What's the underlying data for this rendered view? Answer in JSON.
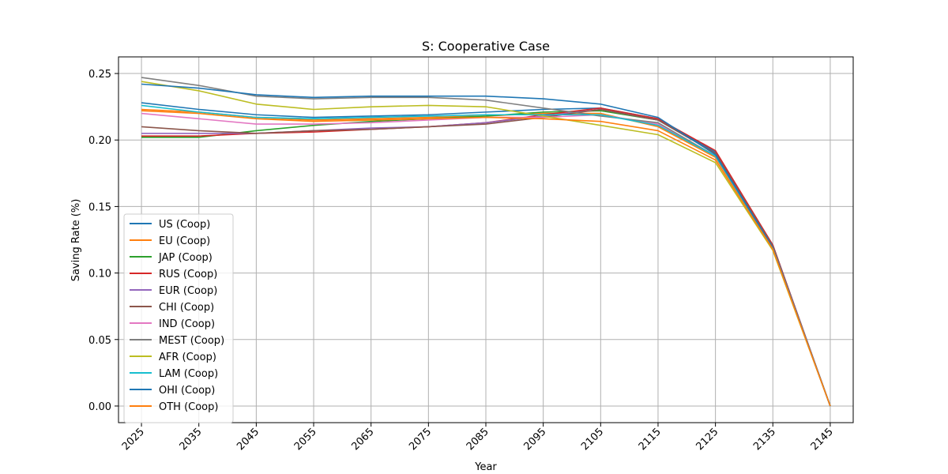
{
  "chart_data": {
    "type": "line",
    "title": "S: Cooperative Case",
    "xlabel": "Year",
    "ylabel": "Saving Rate (%)",
    "x": [
      2025,
      2035,
      2045,
      2055,
      2065,
      2075,
      2085,
      2095,
      2105,
      2115,
      2125,
      2135,
      2145
    ],
    "x_tick_labels": [
      "2025",
      "2035",
      "2045",
      "2055",
      "2065",
      "2075",
      "2085",
      "2095",
      "2105",
      "2115",
      "2125",
      "2135",
      "2145"
    ],
    "y_tick_labels": [
      "0.00",
      "0.05",
      "0.10",
      "0.15",
      "0.20",
      "0.25"
    ],
    "ylim": [
      -0.0125,
      0.2625
    ],
    "grid": true,
    "legend_position": "lower-left",
    "series": [
      {
        "name": "US (Coop)",
        "color": "#1f77b4",
        "values": [
          0.228,
          0.223,
          0.219,
          0.217,
          0.218,
          0.219,
          0.221,
          0.223,
          0.224,
          0.216,
          0.191,
          0.121,
          0.0
        ]
      },
      {
        "name": "EU (Coop)",
        "color": "#ff7f0e",
        "values": [
          0.223,
          0.221,
          0.217,
          0.215,
          0.216,
          0.217,
          0.218,
          0.22,
          0.22,
          0.21,
          0.187,
          0.119,
          0.0
        ]
      },
      {
        "name": "JAP (Coop)",
        "color": "#2ca02c",
        "values": [
          0.202,
          0.202,
          0.207,
          0.211,
          0.214,
          0.216,
          0.218,
          0.221,
          0.222,
          0.215,
          0.19,
          0.12,
          0.0
        ]
      },
      {
        "name": "RUS (Coop)",
        "color": "#d62728",
        "values": [
          0.203,
          0.203,
          0.205,
          0.206,
          0.208,
          0.21,
          0.213,
          0.219,
          0.224,
          0.216,
          0.192,
          0.121,
          0.0
        ]
      },
      {
        "name": "EUR (Coop)",
        "color": "#9467bd",
        "values": [
          0.205,
          0.205,
          0.205,
          0.207,
          0.209,
          0.21,
          0.213,
          0.218,
          0.223,
          0.215,
          0.19,
          0.12,
          0.0
        ]
      },
      {
        "name": "CHI (Coop)",
        "color": "#8c564b",
        "values": [
          0.21,
          0.207,
          0.205,
          0.207,
          0.208,
          0.21,
          0.212,
          0.217,
          0.223,
          0.215,
          0.19,
          0.12,
          0.0
        ]
      },
      {
        "name": "IND (Coop)",
        "color": "#e377c2",
        "values": [
          0.22,
          0.216,
          0.212,
          0.212,
          0.213,
          0.215,
          0.217,
          0.217,
          0.219,
          0.212,
          0.188,
          0.119,
          0.0
        ]
      },
      {
        "name": "MEST (Coop)",
        "color": "#7f7f7f",
        "values": [
          0.247,
          0.241,
          0.233,
          0.231,
          0.232,
          0.232,
          0.23,
          0.224,
          0.218,
          0.213,
          0.188,
          0.119,
          0.0
        ]
      },
      {
        "name": "AFR (Coop)",
        "color": "#bcbd22",
        "values": [
          0.244,
          0.237,
          0.227,
          0.223,
          0.225,
          0.226,
          0.225,
          0.218,
          0.211,
          0.204,
          0.183,
          0.117,
          0.0
        ]
      },
      {
        "name": "LAM (Coop)",
        "color": "#17becf",
        "values": [
          0.226,
          0.221,
          0.217,
          0.216,
          0.217,
          0.218,
          0.219,
          0.219,
          0.219,
          0.211,
          0.188,
          0.119,
          0.0
        ]
      },
      {
        "name": "OHI (Coop)",
        "color": "#1f77b4",
        "values": [
          0.242,
          0.239,
          0.234,
          0.232,
          0.233,
          0.233,
          0.233,
          0.231,
          0.227,
          0.217,
          0.189,
          0.119,
          0.0
        ]
      },
      {
        "name": "OTH (Coop)",
        "color": "#ff7f0e",
        "values": [
          0.222,
          0.22,
          0.216,
          0.214,
          0.215,
          0.216,
          0.217,
          0.216,
          0.214,
          0.207,
          0.185,
          0.118,
          0.0
        ]
      }
    ]
  }
}
